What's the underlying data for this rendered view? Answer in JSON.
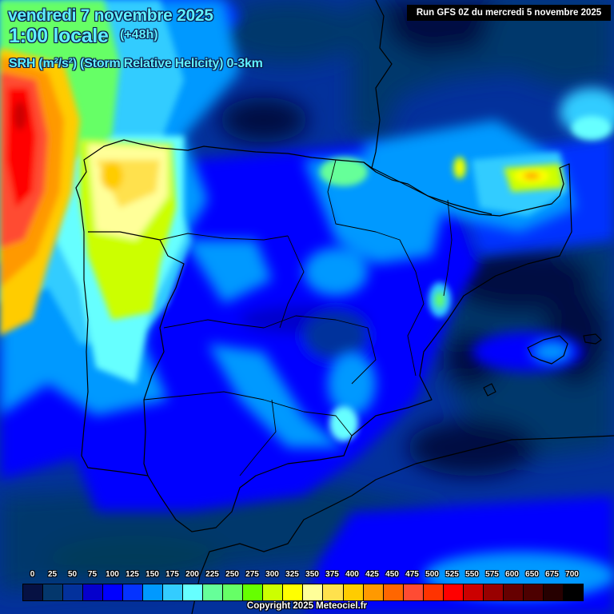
{
  "header": {
    "date": "vendredi 7 novembre 2025",
    "time": "1:00 locale",
    "lead": "(+48h)",
    "parameter": "SRH (m²/s²) (Storm Relative Helicity) 0-3km",
    "run": "Run GFS 0Z du mercredi 5 novembre 2025"
  },
  "legend": {
    "labels": [
      "0",
      "25",
      "50",
      "75",
      "100",
      "125",
      "150",
      "175",
      "200",
      "225",
      "250",
      "275",
      "300",
      "325",
      "350",
      "375",
      "400",
      "425",
      "450",
      "475",
      "500",
      "525",
      "550",
      "575",
      "600",
      "650",
      "675",
      "700"
    ],
    "colors": [
      "#061143",
      "#04376c",
      "#03319c",
      "#0500cc",
      "#0000ff",
      "#0533ff",
      "#0099ff",
      "#33ccff",
      "#66ffff",
      "#66ff99",
      "#66ff66",
      "#66ff00",
      "#ccff00",
      "#ffff00",
      "#ffff99",
      "#ffe14d",
      "#ffcc00",
      "#ff9900",
      "#ff6600",
      "#ff4b33",
      "#ff3300",
      "#ff0000",
      "#cc0000",
      "#990000",
      "#660000",
      "#4d0000",
      "#260000",
      "#000000"
    ],
    "unit": "m²/s²"
  },
  "map": {
    "region": "Iberian Peninsula",
    "model": "GFS",
    "field": "SRH 0-3km",
    "max_zone": "Atlantic west of Galicia (~425-525)",
    "secondary_zones": [
      "Galicia (~325-375)",
      "Pyrenees / Gulf of Lion (~250-350)",
      "Valencia coast (~200-225)"
    ]
  },
  "footer": {
    "copyright": "Copyright 2025 Meteociel.fr"
  }
}
